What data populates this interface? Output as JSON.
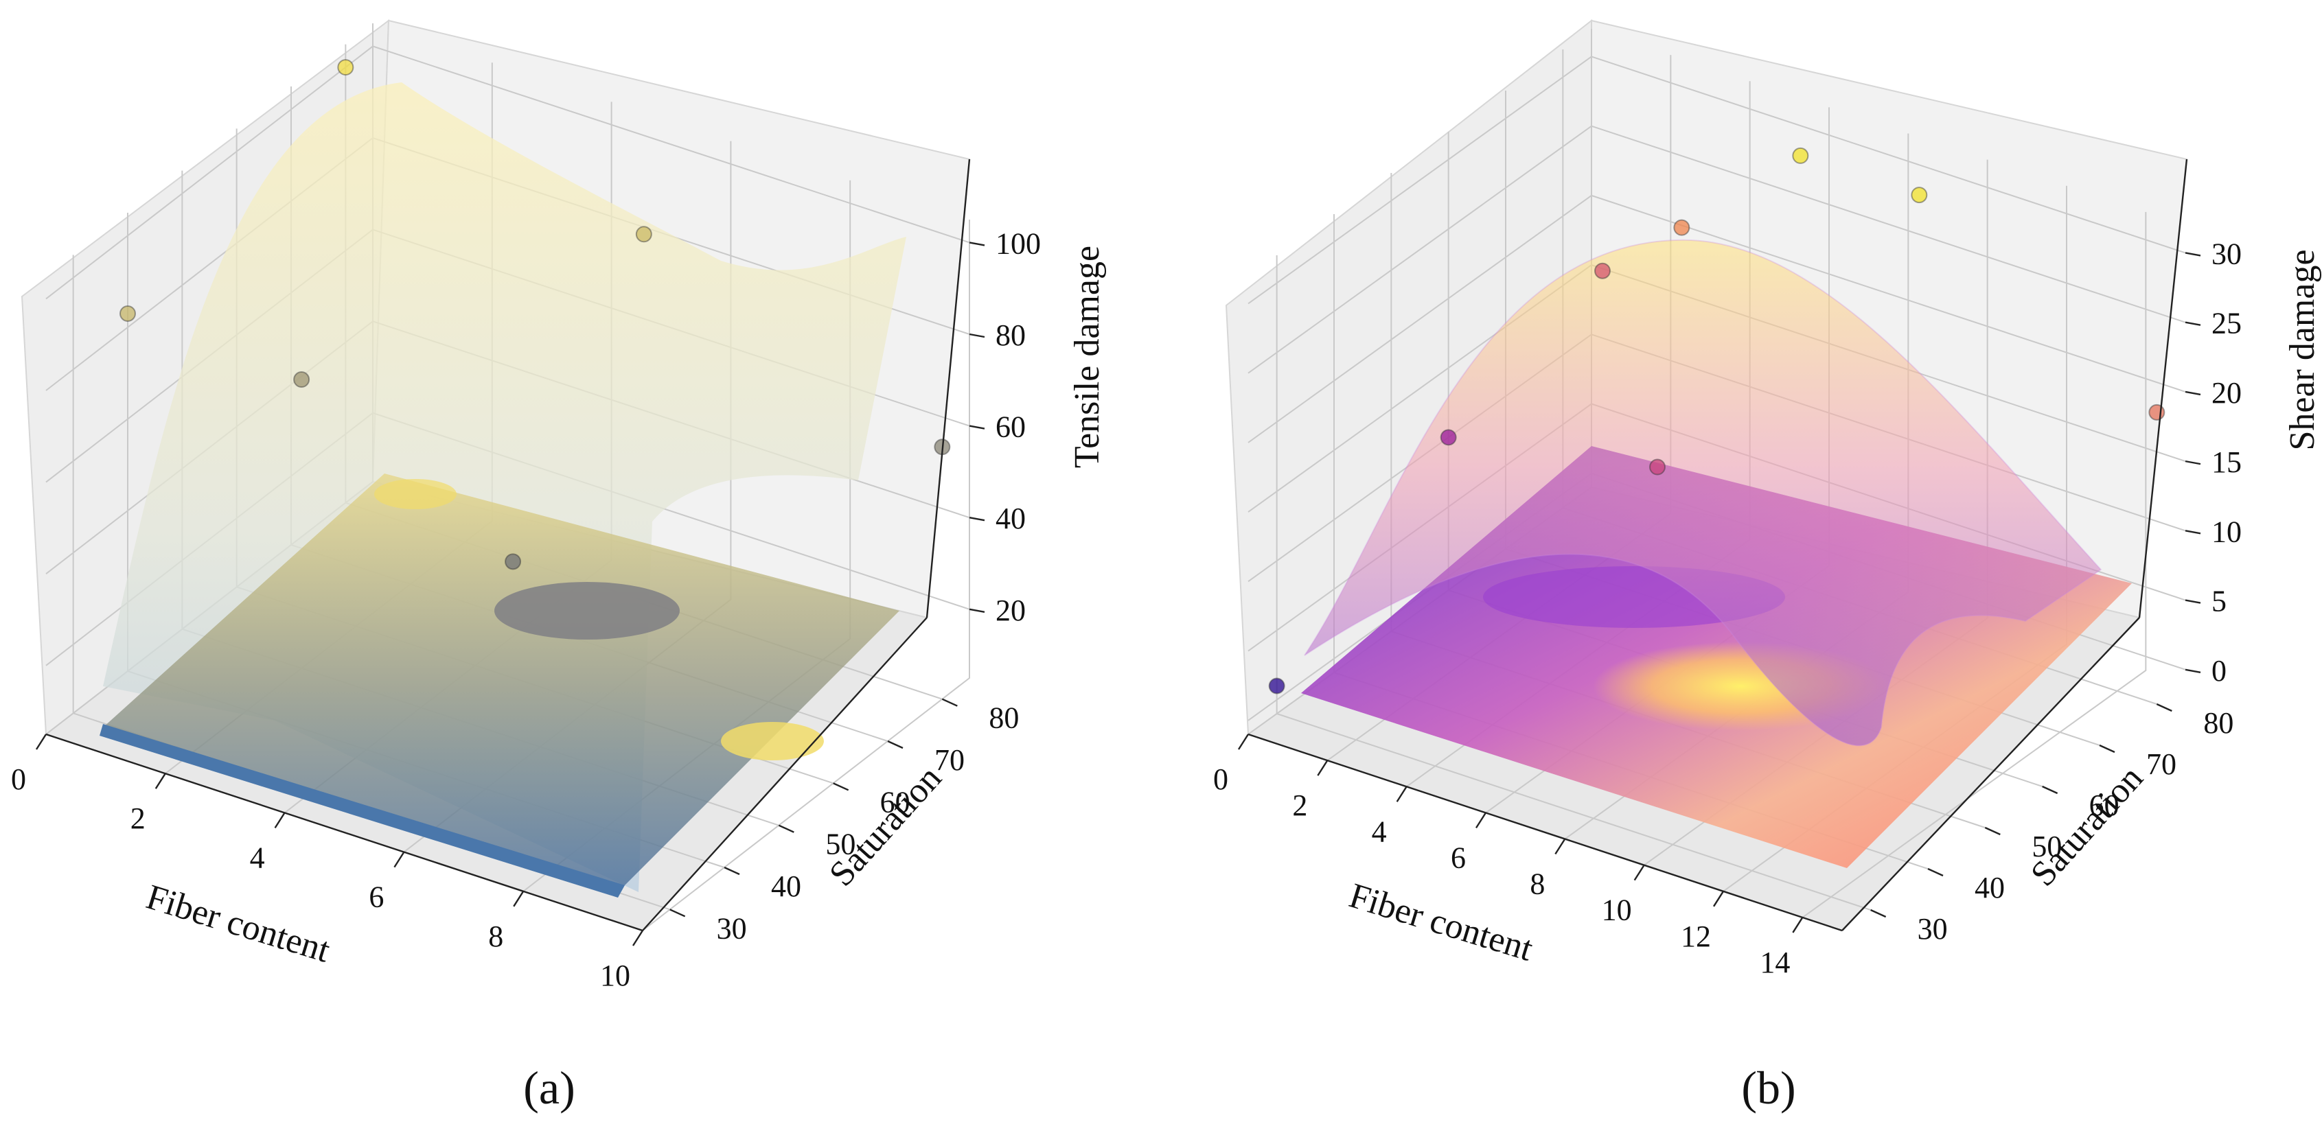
{
  "figure": {
    "caption_a": "(a)",
    "caption_b": "(b)"
  },
  "chart_data": [
    {
      "type": "surface3d",
      "panel": "(a)",
      "xlabel": "Fiber content",
      "ylabel": "Saturation",
      "zlabel": "Tensile damage",
      "xlim": [
        0,
        10
      ],
      "ylim": [
        25,
        85
      ],
      "zlim": [
        5,
        105
      ],
      "xticks": [
        0,
        2,
        4,
        6,
        8,
        10
      ],
      "yticks": [
        30,
        40,
        50,
        60,
        70,
        80
      ],
      "zticks": [
        20,
        40,
        60,
        80,
        100
      ],
      "colormap": "cividis",
      "points": [
        {
          "x": 0,
          "y": 80,
          "z": 100
        },
        {
          "x": 0,
          "y": 40,
          "z": 83
        },
        {
          "x": 5,
          "y": 80,
          "z": 85
        },
        {
          "x": 2,
          "y": 50,
          "z": 68
        },
        {
          "x": 10,
          "y": 80,
          "z": 60
        },
        {
          "x": 6,
          "y": 45,
          "z": 50
        }
      ]
    },
    {
      "type": "surface3d",
      "panel": "(b)",
      "xlabel": "Fiber content",
      "ylabel": "Saturation",
      "zlabel": "Shear damage",
      "xlim": [
        0,
        15
      ],
      "ylim": [
        25,
        85
      ],
      "zlim": [
        -1,
        32
      ],
      "xticks": [
        0,
        2,
        4,
        6,
        8,
        10,
        12,
        14
      ],
      "yticks": [
        30,
        40,
        50,
        60,
        70,
        80
      ],
      "zticks": [
        0,
        5,
        10,
        15,
        20,
        25,
        30
      ],
      "colormap": "plasma",
      "points": [
        {
          "x": 0,
          "y": 30,
          "z": 1
        },
        {
          "x": 0,
          "y": 60,
          "z": 10
        },
        {
          "x": 1,
          "y": 80,
          "z": 17
        },
        {
          "x": 3,
          "y": 80,
          "z": 22
        },
        {
          "x": 6,
          "y": 80,
          "z": 30
        },
        {
          "x": 9,
          "y": 80,
          "z": 30
        },
        {
          "x": 15,
          "y": 80,
          "z": 20
        },
        {
          "x": 6,
          "y": 55,
          "z": 15
        }
      ]
    }
  ]
}
